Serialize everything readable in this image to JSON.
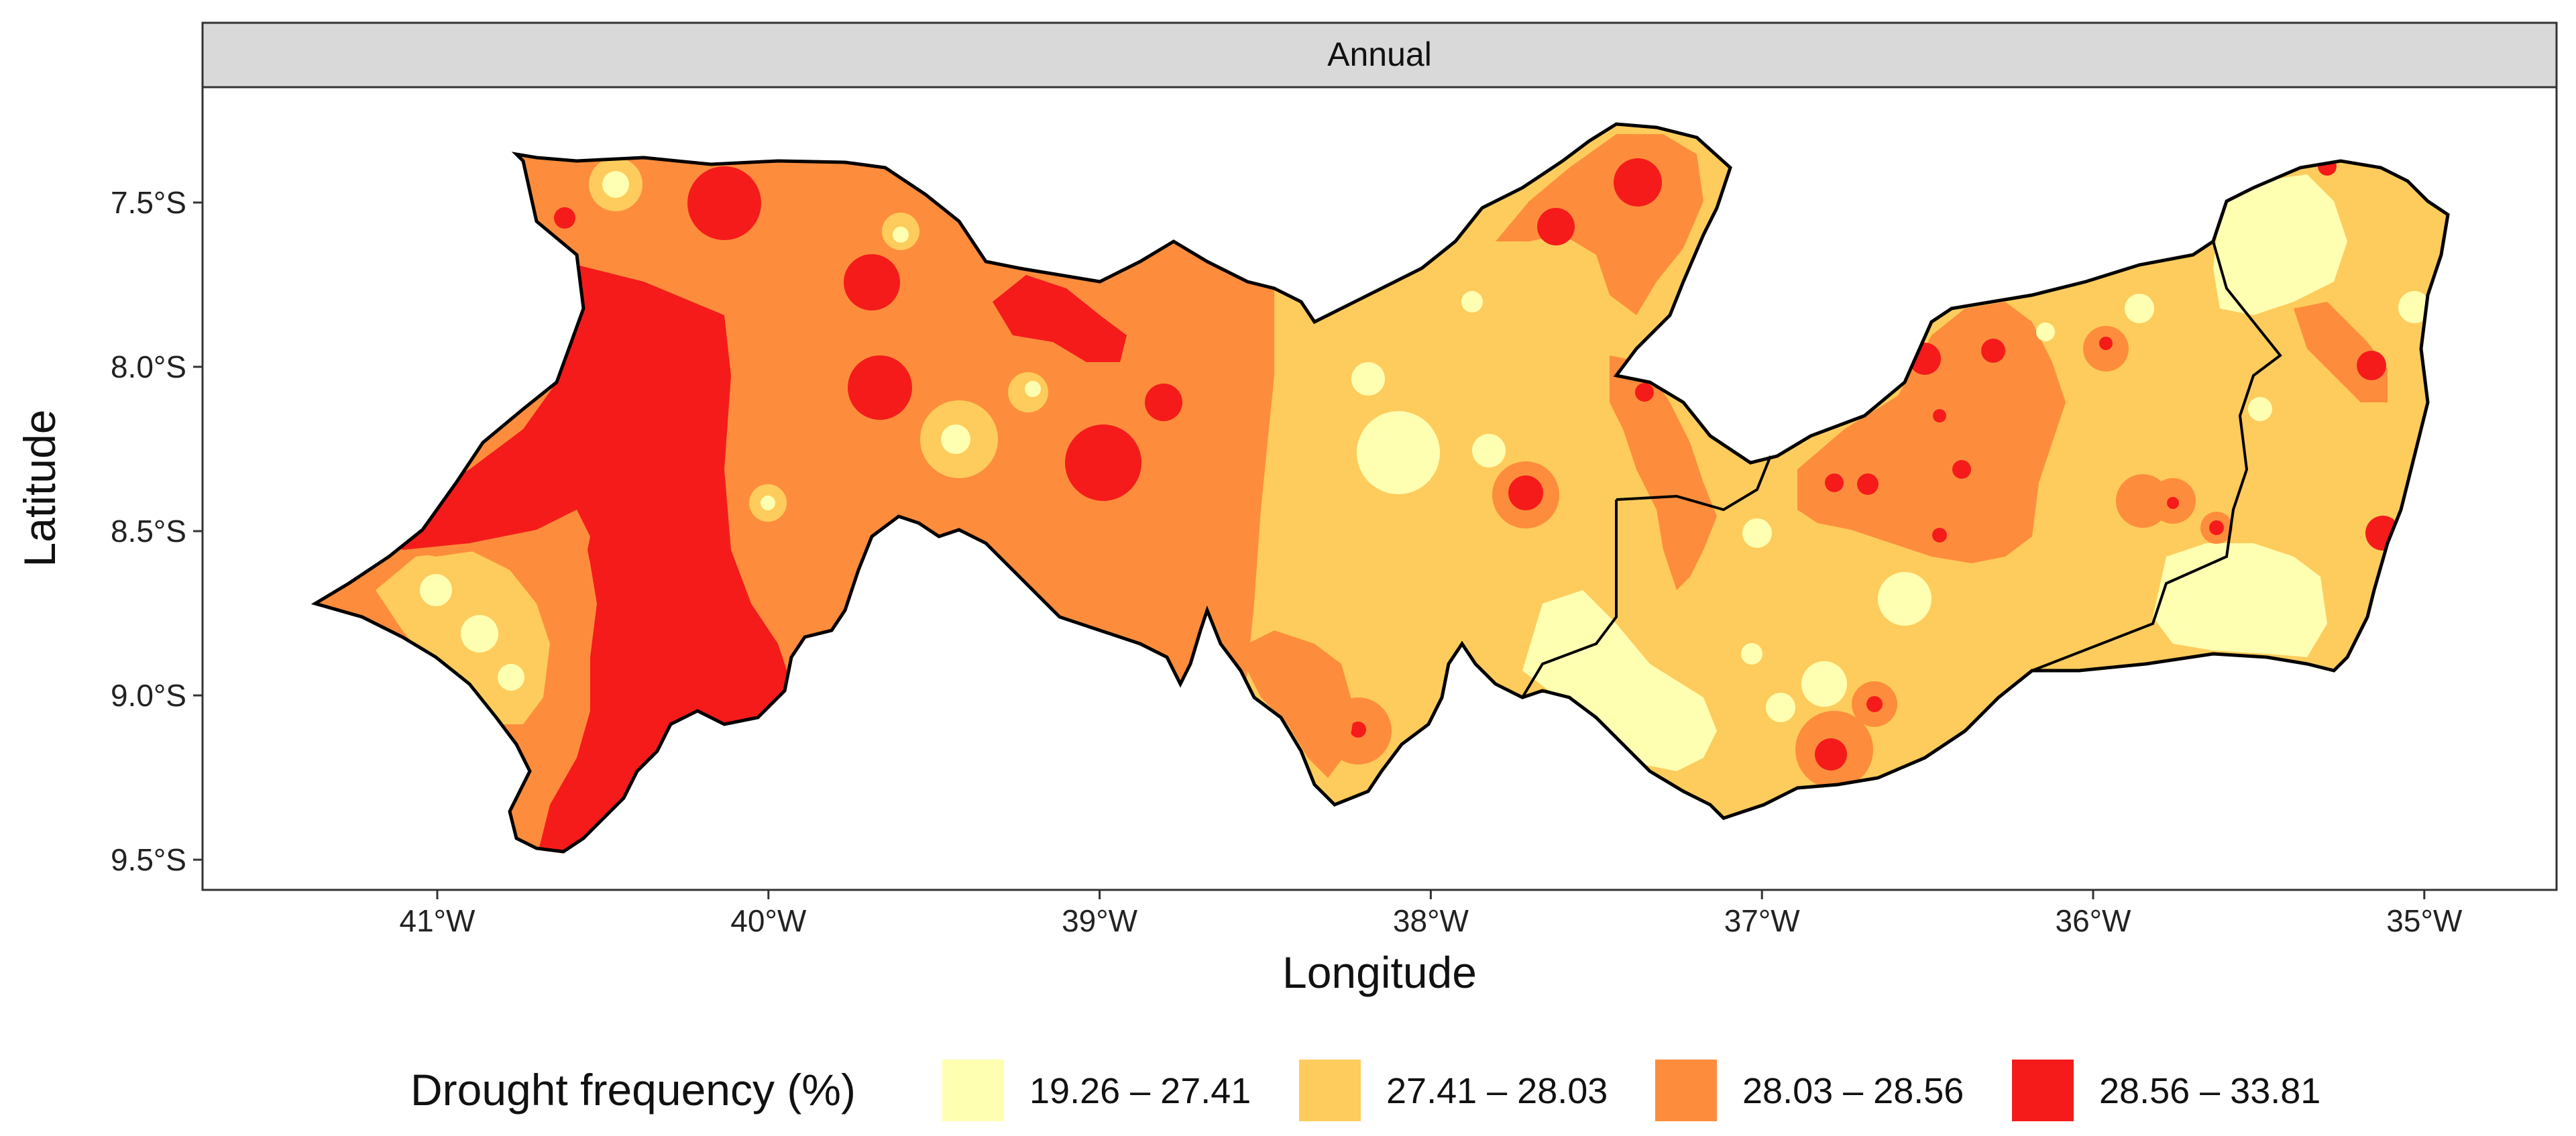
{
  "panel": {
    "strip_label": "Annual"
  },
  "axes": {
    "x_title": "Longitude",
    "y_title": "Latitude",
    "x_ticks": [
      {
        "value": -41,
        "label": "41°W"
      },
      {
        "value": -40,
        "label": "40°W"
      },
      {
        "value": -39,
        "label": "39°W"
      },
      {
        "value": -38,
        "label": "38°W"
      },
      {
        "value": -37,
        "label": "37°W"
      },
      {
        "value": -36,
        "label": "36°W"
      },
      {
        "value": -35,
        "label": "35°W"
      }
    ],
    "y_ticks": [
      {
        "value": -7.5,
        "label": "7.5°S"
      },
      {
        "value": -8.0,
        "label": "8.0°S"
      },
      {
        "value": -8.5,
        "label": "8.5°S"
      },
      {
        "value": -9.0,
        "label": "9.0°S"
      },
      {
        "value": -9.5,
        "label": "9.5°S"
      }
    ]
  },
  "legend": {
    "title": "Drought frequency (%)",
    "classes": [
      {
        "label": "19.26 – 27.41",
        "color": "#FFFFB2"
      },
      {
        "label": "27.41 – 28.03",
        "color": "#FECC5C"
      },
      {
        "label": "28.03 – 28.56",
        "color": "#FD8D3C"
      },
      {
        "label": "28.56 – 33.81",
        "color": "#F51B1B"
      }
    ]
  },
  "colors": {
    "strip_fill": "#D9D9D9",
    "border": "#333333",
    "outline": "#000000"
  }
}
